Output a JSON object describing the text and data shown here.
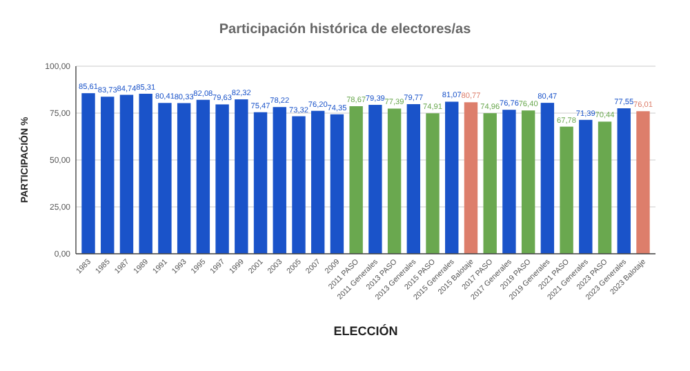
{
  "chart_data": {
    "type": "bar",
    "title": "Participación histórica de electores/as",
    "xlabel": "ELECCIÓN",
    "ylabel": "PARTICIPACIÓN %",
    "categories": [
      "1983",
      "1985",
      "1987",
      "1989",
      "1991",
      "1993",
      "1995",
      "1997",
      "1999",
      "2001",
      "2003",
      "2005",
      "2007",
      "2009",
      "2011 PASO",
      "2011 Generales",
      "2013 PASO",
      "2013 Generales",
      "2015 PASO",
      "2015 Generales",
      "2015 Balotaje",
      "2017 PASO",
      "2017 Generales",
      "2019 PASO",
      "2019 Generales",
      "2021 PASO",
      "2021 Generales",
      "2023 PASO",
      "2023 Generales",
      "2023 Balotaje"
    ],
    "values": [
      85.61,
      83.73,
      84.74,
      85.31,
      80.41,
      80.33,
      82.08,
      79.63,
      82.32,
      75.47,
      78.22,
      73.32,
      76.2,
      74.35,
      78.67,
      79.39,
      77.39,
      79.77,
      74.91,
      81.07,
      80.77,
      74.96,
      76.76,
      76.4,
      80.47,
      67.78,
      71.39,
      70.44,
      77.55,
      76.01
    ],
    "value_labels": [
      "85,61",
      "83,73",
      "84,74",
      "85,31",
      "80,41",
      "80,33",
      "82,08",
      "79,63",
      "82,32",
      "75,47",
      "78,22",
      "73,32",
      "76,20",
      "74,35",
      "78,67",
      "79,39",
      "77,39",
      "79,77",
      "74,91",
      "81,07",
      "80,77",
      "74,96",
      "76,76",
      "76,40",
      "80,47",
      "67,78",
      "71,39",
      "70,44",
      "77,55",
      "76,01"
    ],
    "colors": [
      "#1a53c9",
      "#1a53c9",
      "#1a53c9",
      "#1a53c9",
      "#1a53c9",
      "#1a53c9",
      "#1a53c9",
      "#1a53c9",
      "#1a53c9",
      "#1a53c9",
      "#1a53c9",
      "#1a53c9",
      "#1a53c9",
      "#1a53c9",
      "#6aa84f",
      "#1a53c9",
      "#6aa84f",
      "#1a53c9",
      "#6aa84f",
      "#1a53c9",
      "#dd7e6b",
      "#6aa84f",
      "#1a53c9",
      "#6aa84f",
      "#1a53c9",
      "#6aa84f",
      "#1a53c9",
      "#6aa84f",
      "#1a53c9",
      "#dd7e6b"
    ],
    "ylim": [
      0,
      100
    ],
    "yticks": [
      {
        "value": 0,
        "label": "0,00"
      },
      {
        "value": 25,
        "label": "25,00"
      },
      {
        "value": 50,
        "label": "50,00"
      },
      {
        "value": 75,
        "label": "75,00"
      },
      {
        "value": 100,
        "label": "100,00"
      }
    ],
    "grid": "y"
  }
}
